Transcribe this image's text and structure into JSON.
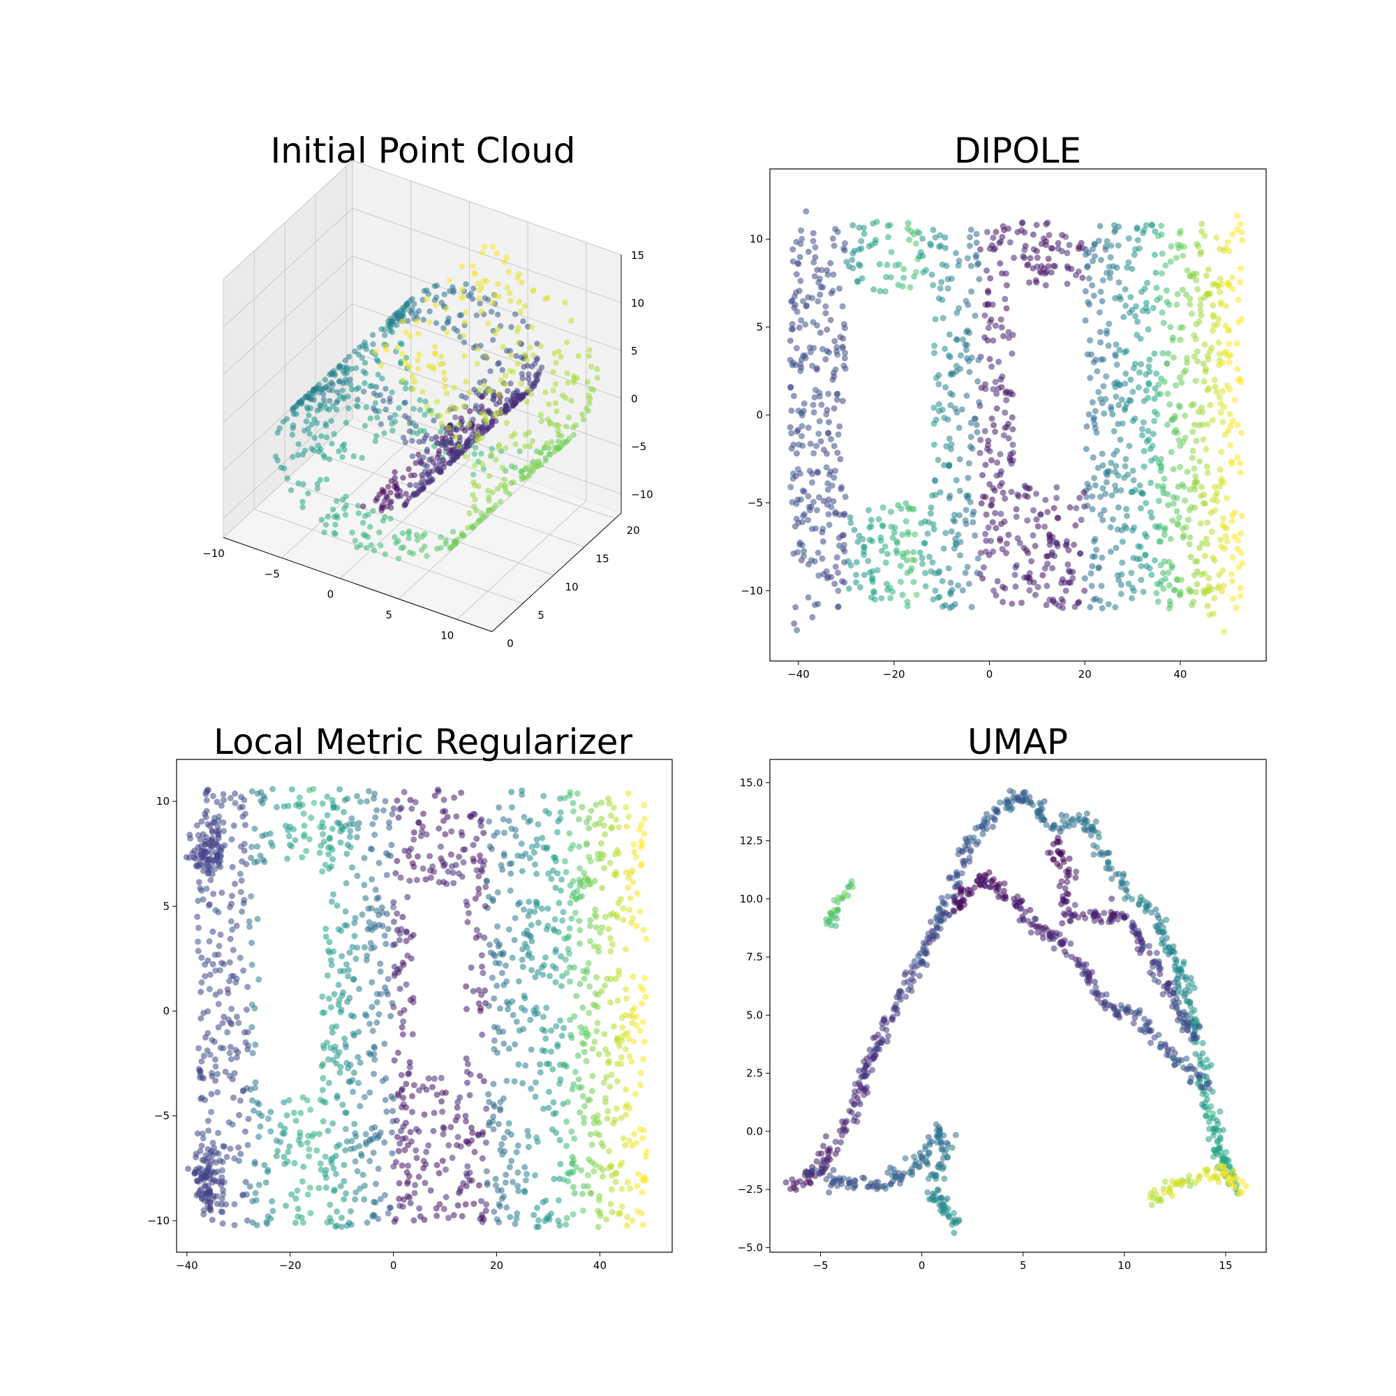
{
  "figure": {
    "colormap": [
      "#440154",
      "#482878",
      "#3e4989",
      "#31688e",
      "#26828e",
      "#1f9e89",
      "#35b779",
      "#6ece58",
      "#b5de2b",
      "#fde725"
    ],
    "point_alpha": 0.55
  },
  "chart_data": [
    {
      "type": "scatter3d",
      "title": "Initial Point Cloud",
      "dataset": "swiss roll with two rectangular holes",
      "xlim": [
        -10,
        13
      ],
      "ylim": [
        0,
        21
      ],
      "zlim": [
        -12,
        15
      ],
      "xticks": [
        -10,
        -5,
        0,
        5,
        10
      ],
      "yticks": [
        0,
        5,
        10,
        15,
        20
      ],
      "zticks": [
        -10,
        -5,
        0,
        5,
        10,
        15
      ],
      "n_points": 1100,
      "grid": true
    },
    {
      "type": "scatter",
      "title": "DIPOLE",
      "xlim": [
        -46,
        58
      ],
      "ylim": [
        -14,
        14
      ],
      "xticks": [
        -40,
        -20,
        0,
        20,
        40
      ],
      "yticks": [
        -10,
        -5,
        0,
        5,
        10
      ],
      "color_gradient_along": "x (left dark blue → teal → green; central purple band; right yellow)",
      "holes": [
        {
          "x": [
            -30,
            -12
          ],
          "y": [
            -5,
            7
          ]
        },
        {
          "x": [
            5,
            20
          ],
          "y": [
            -4,
            7
          ]
        }
      ],
      "n_points": 1600
    },
    {
      "type": "scatter",
      "title": "Local Metric Regularizer",
      "xlim": [
        -42,
        54
      ],
      "ylim": [
        -11.5,
        12
      ],
      "xticks": [
        -40,
        -20,
        0,
        20,
        40
      ],
      "yticks": [
        -10,
        -5,
        0,
        5,
        10
      ],
      "holes": [
        {
          "x": [
            -26,
            -14
          ],
          "y": [
            -4,
            7
          ]
        },
        {
          "x": [
            4,
            14
          ],
          "y": [
            -3,
            6
          ]
        }
      ],
      "n_points": 1700
    },
    {
      "type": "scatter",
      "title": "UMAP",
      "xlim": [
        -7.5,
        17
      ],
      "ylim": [
        -5.2,
        16
      ],
      "xticks": [
        -5,
        0,
        5,
        10,
        15
      ],
      "yticks": [
        -5.0,
        -2.5,
        0.0,
        2.5,
        5.0,
        7.5,
        10.0,
        12.5,
        15.0
      ],
      "curves": [
        {
          "color_t": [
            0.05,
            0.6
          ],
          "points": [
            [
              -6.5,
              -2.5
            ],
            [
              -5,
              -1.5
            ],
            [
              -3.5,
              0.5
            ],
            [
              -2.8,
              2.5
            ],
            [
              -1.5,
              5
            ],
            [
              0,
              7.5
            ],
            [
              1,
              9.5
            ],
            [
              2.5,
              12.5
            ],
            [
              4,
              14
            ],
            [
              5.2,
              14.5
            ],
            [
              6.5,
              13
            ],
            [
              8,
              13.5
            ],
            [
              9.5,
              11
            ],
            [
              11.2,
              9.5
            ],
            [
              12.5,
              7.5
            ],
            [
              13.2,
              5.5
            ],
            [
              13.5,
              4
            ],
            [
              14,
              2
            ],
            [
              14.3,
              0.3
            ],
            [
              14.8,
              -1.2
            ],
            [
              15.5,
              -2.5
            ]
          ]
        },
        {
          "color_t": [
            0.2,
            0.5
          ],
          "points": [
            [
              -5.5,
              -1.8
            ],
            [
              -4.2,
              -2.2
            ],
            [
              -2,
              -2.3
            ],
            [
              0,
              -1.3
            ],
            [
              0.8,
              0.2
            ],
            [
              1.2,
              -1
            ],
            [
              0.5,
              -2.8
            ],
            [
              1.5,
              -3.5
            ],
            [
              1.8,
              -4.2
            ]
          ]
        },
        {
          "color_t": [
            0.0,
            0.3
          ],
          "points": [
            [
              1.5,
              9.5
            ],
            [
              3,
              11
            ],
            [
              4.5,
              10
            ],
            [
              5.5,
              9
            ],
            [
              7,
              8
            ],
            [
              8,
              7
            ],
            [
              9,
              5.5
            ],
            [
              10.5,
              5
            ],
            [
              11.5,
              4
            ],
            [
              12.5,
              3.2
            ],
            [
              13.5,
              2.5
            ],
            [
              14.2,
              1.8
            ]
          ]
        },
        {
          "color_t": [
            0.0,
            0.25
          ],
          "points": [
            [
              6.5,
              12.5
            ],
            [
              7.2,
              11
            ],
            [
              7,
              9.5
            ],
            [
              8.5,
              9.2
            ],
            [
              10,
              9.3
            ],
            [
              11,
              8
            ],
            [
              11.8,
              6.5
            ],
            [
              12.5,
              5.5
            ],
            [
              13.5,
              4
            ]
          ]
        },
        {
          "color_t": [
            0.7,
            0.75
          ],
          "points": [
            [
              -4.5,
              9
            ],
            [
              -4.2,
              9.6
            ],
            [
              -3.8,
              10.3
            ],
            [
              -3.5,
              10.7
            ]
          ]
        },
        {
          "color_t": [
            0.88,
            1.0
          ],
          "points": [
            [
              11.3,
              -3.1
            ],
            [
              12.3,
              -2.5
            ],
            [
              13.3,
              -2.1
            ],
            [
              14.3,
              -1.8
            ],
            [
              15.2,
              -1.9
            ],
            [
              15.8,
              -2.6
            ]
          ]
        }
      ],
      "n_points": 1300
    }
  ]
}
